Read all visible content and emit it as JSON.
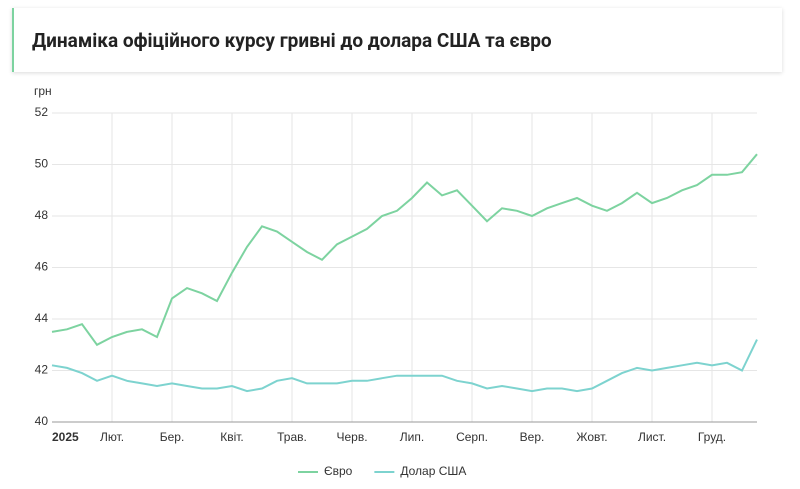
{
  "chart_data": {
    "type": "line",
    "title": "Динаміка офіційного курсу гривні до долара США та євро",
    "y_label": "грн",
    "categories": [
      "2025",
      null,
      null,
      null,
      "Лют.",
      null,
      null,
      null,
      "Бер.",
      null,
      null,
      null,
      "Квіт.",
      null,
      null,
      null,
      "Трав.",
      null,
      null,
      null,
      "Черв.",
      null,
      null,
      null,
      "Лип.",
      null,
      null,
      null,
      "Серп.",
      null,
      null,
      null,
      "Вер.",
      null,
      null,
      null,
      "Жовт.",
      null,
      null,
      null,
      "Лист.",
      null,
      null,
      null,
      "Груд.",
      null,
      null,
      null
    ],
    "series": [
      {
        "name": "Євро",
        "color": "#7dd3a0",
        "values": [
          43.5,
          43.6,
          43.8,
          43.0,
          43.3,
          43.5,
          43.6,
          43.3,
          44.8,
          45.2,
          45.0,
          44.7,
          45.8,
          46.8,
          47.6,
          47.4,
          47.0,
          46.6,
          46.3,
          46.9,
          47.2,
          47.5,
          48.0,
          48.2,
          48.7,
          49.3,
          48.8,
          49.0,
          48.4,
          47.8,
          48.3,
          48.2,
          48.0,
          48.3,
          48.5,
          48.7,
          48.4,
          48.2,
          48.5,
          48.9,
          48.5,
          48.7,
          49.0,
          49.2,
          49.6,
          49.6,
          49.7,
          50.4
        ]
      },
      {
        "name": "Долар США",
        "color": "#7dd3cf",
        "values": [
          42.2,
          42.1,
          41.9,
          41.6,
          41.8,
          41.6,
          41.5,
          41.4,
          41.5,
          41.4,
          41.3,
          41.3,
          41.4,
          41.2,
          41.3,
          41.6,
          41.7,
          41.5,
          41.5,
          41.5,
          41.6,
          41.6,
          41.7,
          41.8,
          41.8,
          41.8,
          41.8,
          41.6,
          41.5,
          41.3,
          41.4,
          41.3,
          41.2,
          41.3,
          41.3,
          41.2,
          41.3,
          41.6,
          41.9,
          42.1,
          42.0,
          42.1,
          42.2,
          42.3,
          42.2,
          42.3,
          42.0,
          43.2
        ]
      }
    ],
    "ylim": [
      40,
      52
    ],
    "yticks": [
      40,
      42,
      44,
      46,
      48,
      50,
      52
    ],
    "grid": true
  }
}
